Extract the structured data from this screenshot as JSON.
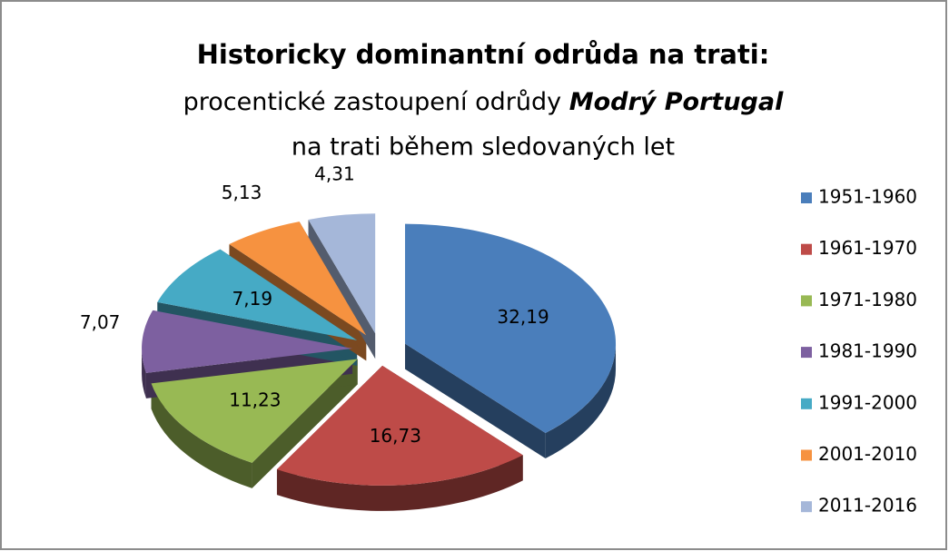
{
  "chart_data": {
    "type": "pie3d",
    "title": "Historicky dominantní odrůda na trati:",
    "subtitle": [
      "procentické zastoupení odrůdy",
      "Modrý Portugal",
      "na trati během sledovaných let"
    ],
    "categories": [
      "1951-1960",
      "1961-1970",
      "1971-1980",
      "1981-1990",
      "1991-2000",
      "2001-2010",
      "2011-2016"
    ],
    "values": [
      32.19,
      16.73,
      11.23,
      7.07,
      7.19,
      5.13,
      4.31
    ],
    "value_labels": [
      "32,19",
      "16,73",
      "11,23",
      "7,07",
      "7,19",
      "5,13",
      "4,31"
    ],
    "colors": [
      "#4a7ebb",
      "#be4b48",
      "#98b954",
      "#7d60a0",
      "#46aac5",
      "#f69240",
      "#a5b7d9"
    ],
    "legend": "right"
  }
}
